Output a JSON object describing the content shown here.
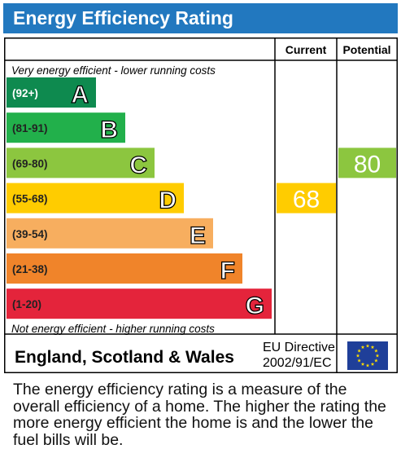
{
  "header": {
    "title": "Energy Efficiency Rating"
  },
  "columns": {
    "current": "Current",
    "potential": "Potential"
  },
  "scale": {
    "top_note": "Very energy efficient - lower running costs",
    "bottom_note": "Not energy efficient - higher running costs"
  },
  "chart_data": {
    "type": "bar",
    "title": "Energy Efficiency Rating",
    "categories": [
      "A",
      "B",
      "C",
      "D",
      "E",
      "F",
      "G"
    ],
    "ranges": [
      "(92+)",
      "(81-91)",
      "(69-80)",
      "(55-68)",
      "(39-54)",
      "(21-38)",
      "(1-20)"
    ],
    "colors": [
      "#0e8a4f",
      "#22b04b",
      "#8cc63f",
      "#ffcc00",
      "#f7ae5f",
      "#f0842a",
      "#e4243b"
    ],
    "current": {
      "value": 68,
      "band": "D",
      "color": "#ffcc00"
    },
    "potential": {
      "value": 80,
      "band": "C",
      "color": "#8cc63f"
    }
  },
  "region": {
    "name": "England, Scotland & Wales",
    "directive_line1": "EU Directive",
    "directive_line2": "2002/91/EC",
    "flag_icon": "eu-flag-icon"
  },
  "footer": {
    "text": "The energy efficiency rating is a measure of the overall efficiency of a home. The higher the rating the more energy efficient the home is and the lower the fuel bills will be."
  }
}
